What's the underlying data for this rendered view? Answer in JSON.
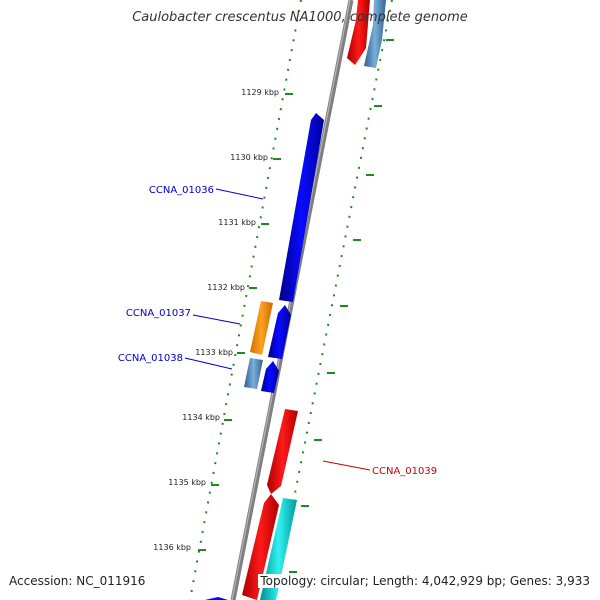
{
  "title": "Caulobacter crescentus NA1000, complete genome",
  "footer": {
    "accession": "Accession: NC_011916",
    "topology": "Topology: circular; Length: 4,042,929 bp; Genes: 3,933"
  },
  "colors": {
    "backbone": "#7f7f7f",
    "tick": "#1f8a1f",
    "gene_blue": "#0000ee",
    "gene_red": "#ee0000",
    "gene_orange": "#ff9900",
    "gene_steelblue": "#4f84b4",
    "gene_cyan": "#00cccc",
    "label_blue": "#0000cc",
    "label_red": "#cc0000"
  },
  "ticks": [
    "1129 kbp",
    "1130 kbp",
    "1131 kbp",
    "1132 kbp",
    "1133 kbp",
    "1134 kbp",
    "1135 kbp",
    "1136 kbp"
  ],
  "gene_labels": [
    "CCNA_01036",
    "CCNA_01037",
    "CCNA_01038",
    "CCNA_01039"
  ]
}
